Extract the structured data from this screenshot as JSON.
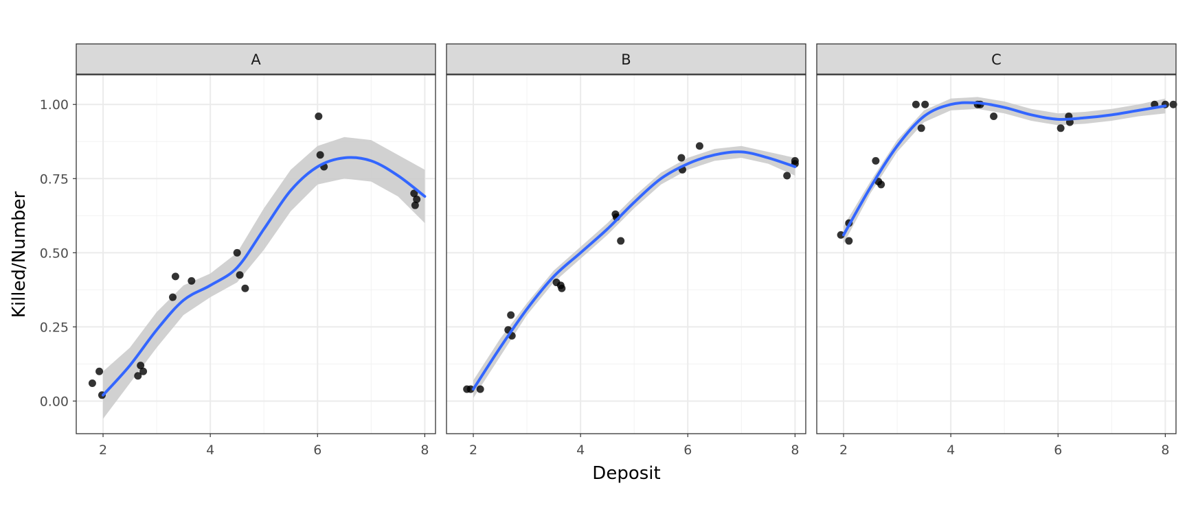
{
  "chart_data": {
    "type": "scatter",
    "xlabel": "Deposit",
    "ylabel": "Killed/Number",
    "xlim": [
      1.5,
      8.2
    ],
    "ylim": [
      -0.11,
      1.1
    ],
    "x_ticks": [
      2,
      4,
      6,
      8
    ],
    "y_ticks": [
      0.0,
      0.25,
      0.5,
      0.75,
      1.0
    ],
    "y_tick_labels": [
      "0.00",
      "0.25",
      "0.50",
      "0.75",
      "1.00"
    ],
    "grid": true,
    "legend": "none",
    "smooth_color": "#3366ff",
    "band_color": "#cccccc",
    "point_color": "#000000",
    "panels": [
      {
        "label": "A",
        "points": [
          [
            1.8,
            0.06
          ],
          [
            1.93,
            0.1
          ],
          [
            1.98,
            0.02
          ],
          [
            2.65,
            0.085
          ],
          [
            2.7,
            0.12
          ],
          [
            2.75,
            0.1
          ],
          [
            3.3,
            0.35
          ],
          [
            3.35,
            0.42
          ],
          [
            3.65,
            0.405
          ],
          [
            4.5,
            0.5
          ],
          [
            4.55,
            0.425
          ],
          [
            4.65,
            0.38
          ],
          [
            6.02,
            0.96
          ],
          [
            6.05,
            0.83
          ],
          [
            6.12,
            0.79
          ],
          [
            7.8,
            0.7
          ],
          [
            7.82,
            0.66
          ],
          [
            7.85,
            0.68
          ]
        ],
        "smooth": [
          [
            2,
            0.02
          ],
          [
            2.5,
            0.12
          ],
          [
            3,
            0.24
          ],
          [
            3.5,
            0.34
          ],
          [
            4,
            0.39
          ],
          [
            4.5,
            0.45
          ],
          [
            5,
            0.58
          ],
          [
            5.5,
            0.71
          ],
          [
            6,
            0.79
          ],
          [
            6.5,
            0.82
          ],
          [
            7,
            0.81
          ],
          [
            7.5,
            0.76
          ],
          [
            8,
            0.69
          ]
        ],
        "band_lower": [
          [
            2,
            -0.06
          ],
          [
            2.5,
            0.06
          ],
          [
            3,
            0.18
          ],
          [
            3.5,
            0.29
          ],
          [
            4,
            0.35
          ],
          [
            4.5,
            0.4
          ],
          [
            5,
            0.51
          ],
          [
            5.5,
            0.64
          ],
          [
            6,
            0.73
          ],
          [
            6.5,
            0.75
          ],
          [
            7,
            0.74
          ],
          [
            7.5,
            0.69
          ],
          [
            8,
            0.6
          ]
        ],
        "band_upper": [
          [
            2,
            0.1
          ],
          [
            2.5,
            0.18
          ],
          [
            3,
            0.3
          ],
          [
            3.5,
            0.39
          ],
          [
            4,
            0.43
          ],
          [
            4.5,
            0.5
          ],
          [
            5,
            0.65
          ],
          [
            5.5,
            0.78
          ],
          [
            6,
            0.86
          ],
          [
            6.5,
            0.89
          ],
          [
            7,
            0.88
          ],
          [
            7.5,
            0.83
          ],
          [
            8,
            0.78
          ]
        ]
      },
      {
        "label": "B",
        "points": [
          [
            1.88,
            0.04
          ],
          [
            1.95,
            0.04
          ],
          [
            2.13,
            0.04
          ],
          [
            2.65,
            0.24
          ],
          [
            2.7,
            0.29
          ],
          [
            2.72,
            0.22
          ],
          [
            3.55,
            0.4
          ],
          [
            3.63,
            0.39
          ],
          [
            3.65,
            0.38
          ],
          [
            4.65,
            0.63
          ],
          [
            4.67,
            0.62
          ],
          [
            4.75,
            0.54
          ],
          [
            5.88,
            0.82
          ],
          [
            5.9,
            0.78
          ],
          [
            6.22,
            0.86
          ],
          [
            7.85,
            0.76
          ],
          [
            8.0,
            0.81
          ],
          [
            8.0,
            0.8
          ]
        ],
        "smooth": [
          [
            2,
            0.04
          ],
          [
            2.5,
            0.18
          ],
          [
            3,
            0.31
          ],
          [
            3.5,
            0.42
          ],
          [
            4,
            0.5
          ],
          [
            4.5,
            0.58
          ],
          [
            5,
            0.67
          ],
          [
            5.5,
            0.75
          ],
          [
            6,
            0.8
          ],
          [
            6.5,
            0.83
          ],
          [
            7,
            0.84
          ],
          [
            7.5,
            0.82
          ],
          [
            8,
            0.79
          ]
        ],
        "band_lower": [
          [
            2,
            0.01
          ],
          [
            2.5,
            0.15
          ],
          [
            3,
            0.29
          ],
          [
            3.5,
            0.4
          ],
          [
            4,
            0.48
          ],
          [
            4.5,
            0.56
          ],
          [
            5,
            0.65
          ],
          [
            5.5,
            0.73
          ],
          [
            6,
            0.78
          ],
          [
            6.5,
            0.81
          ],
          [
            7,
            0.82
          ],
          [
            7.5,
            0.8
          ],
          [
            8,
            0.76
          ]
        ],
        "band_upper": [
          [
            2,
            0.07
          ],
          [
            2.5,
            0.21
          ],
          [
            3,
            0.33
          ],
          [
            3.5,
            0.44
          ],
          [
            4,
            0.52
          ],
          [
            4.5,
            0.6
          ],
          [
            5,
            0.69
          ],
          [
            5.5,
            0.77
          ],
          [
            6,
            0.82
          ],
          [
            6.5,
            0.85
          ],
          [
            7,
            0.86
          ],
          [
            7.5,
            0.84
          ],
          [
            8,
            0.82
          ]
        ]
      },
      {
        "label": "C",
        "points": [
          [
            1.95,
            0.56
          ],
          [
            2.1,
            0.6
          ],
          [
            2.1,
            0.54
          ],
          [
            2.6,
            0.81
          ],
          [
            2.65,
            0.74
          ],
          [
            2.7,
            0.73
          ],
          [
            3.35,
            1.0
          ],
          [
            3.45,
            0.92
          ],
          [
            3.52,
            1.0
          ],
          [
            4.5,
            1.0
          ],
          [
            4.55,
            1.0
          ],
          [
            4.8,
            0.96
          ],
          [
            6.05,
            0.92
          ],
          [
            6.2,
            0.96
          ],
          [
            6.22,
            0.94
          ],
          [
            7.8,
            1.0
          ],
          [
            8.0,
            1.0
          ],
          [
            8.15,
            1.0
          ]
        ],
        "smooth": [
          [
            2,
            0.56
          ],
          [
            2.5,
            0.72
          ],
          [
            3,
            0.86
          ],
          [
            3.5,
            0.96
          ],
          [
            4,
            1.0
          ],
          [
            4.5,
            1.005
          ],
          [
            5,
            0.99
          ],
          [
            5.5,
            0.965
          ],
          [
            6,
            0.95
          ],
          [
            6.5,
            0.955
          ],
          [
            7,
            0.965
          ],
          [
            7.5,
            0.98
          ],
          [
            8,
            0.995
          ]
        ],
        "band_lower": [
          [
            2,
            0.53
          ],
          [
            2.5,
            0.7
          ],
          [
            3,
            0.84
          ],
          [
            3.5,
            0.94
          ],
          [
            4,
            0.98
          ],
          [
            4.5,
            0.985
          ],
          [
            5,
            0.97
          ],
          [
            5.5,
            0.945
          ],
          [
            6,
            0.93
          ],
          [
            6.5,
            0.935
          ],
          [
            7,
            0.945
          ],
          [
            7.5,
            0.96
          ],
          [
            8,
            0.97
          ]
        ],
        "band_upper": [
          [
            2,
            0.59
          ],
          [
            2.5,
            0.74
          ],
          [
            3,
            0.88
          ],
          [
            3.5,
            0.98
          ],
          [
            4,
            1.02
          ],
          [
            4.5,
            1.025
          ],
          [
            5,
            1.01
          ],
          [
            5.5,
            0.985
          ],
          [
            6,
            0.97
          ],
          [
            6.5,
            0.975
          ],
          [
            7,
            0.985
          ],
          [
            7.5,
            1.0
          ],
          [
            8,
            1.02
          ]
        ]
      }
    ]
  }
}
